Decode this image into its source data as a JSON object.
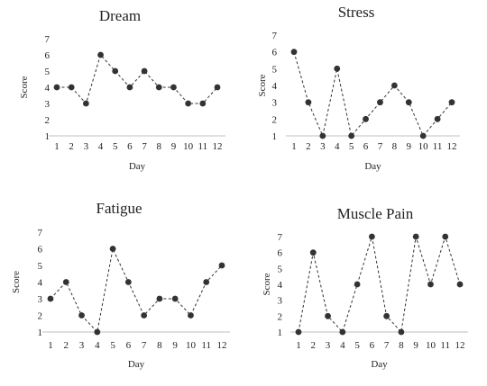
{
  "chart_data": [
    {
      "type": "line",
      "title": "Dream",
      "xlabel": "Day",
      "ylabel": "Score",
      "categories": [
        "1",
        "2",
        "3",
        "4",
        "5",
        "6",
        "7",
        "8",
        "9",
        "10",
        "11",
        "12"
      ],
      "values": [
        4,
        4,
        3,
        6,
        5,
        4,
        5,
        4,
        4,
        3,
        3,
        4
      ],
      "ylim": [
        1,
        7
      ],
      "yticks": [
        1,
        2,
        3,
        4,
        5,
        6,
        7
      ],
      "grid": false,
      "line_style": "dashed",
      "marker": "circle",
      "color": "#333333"
    },
    {
      "type": "line",
      "title": "Stress",
      "xlabel": "Day",
      "ylabel": "Score",
      "categories": [
        "1",
        "2",
        "3",
        "4",
        "5",
        "6",
        "7",
        "8",
        "9",
        "10",
        "11",
        "12"
      ],
      "values": [
        6,
        3,
        1,
        5,
        1,
        2,
        3,
        4,
        3,
        1,
        2,
        3
      ],
      "ylim": [
        1,
        7
      ],
      "yticks": [
        1,
        2,
        3,
        4,
        5,
        6,
        7
      ],
      "grid": false,
      "line_style": "dashed",
      "marker": "circle",
      "color": "#333333"
    },
    {
      "type": "line",
      "title": "Fatigue",
      "xlabel": "Day",
      "ylabel": "Score",
      "categories": [
        "1",
        "2",
        "3",
        "4",
        "5",
        "6",
        "7",
        "8",
        "9",
        "10",
        "11",
        "12"
      ],
      "values": [
        3,
        4,
        2,
        1,
        6,
        4,
        2,
        3,
        3,
        2,
        4,
        5
      ],
      "ylim": [
        1,
        7
      ],
      "yticks": [
        1,
        2,
        3,
        4,
        5,
        6,
        7
      ],
      "grid": false,
      "line_style": "dashed",
      "marker": "circle",
      "color": "#333333"
    },
    {
      "type": "line",
      "title": "Muscle Pain",
      "xlabel": "Day",
      "ylabel": "Score",
      "categories": [
        "1",
        "2",
        "3",
        "4",
        "5",
        "6",
        "7",
        "8",
        "9",
        "10",
        "11",
        "12"
      ],
      "values": [
        1,
        6,
        2,
        1,
        4,
        7,
        2,
        1,
        7,
        4,
        7,
        4
      ],
      "ylim": [
        1,
        7
      ],
      "yticks": [
        1,
        2,
        3,
        4,
        5,
        6,
        7
      ],
      "grid": false,
      "line_style": "dashed",
      "marker": "circle",
      "color": "#333333"
    }
  ]
}
